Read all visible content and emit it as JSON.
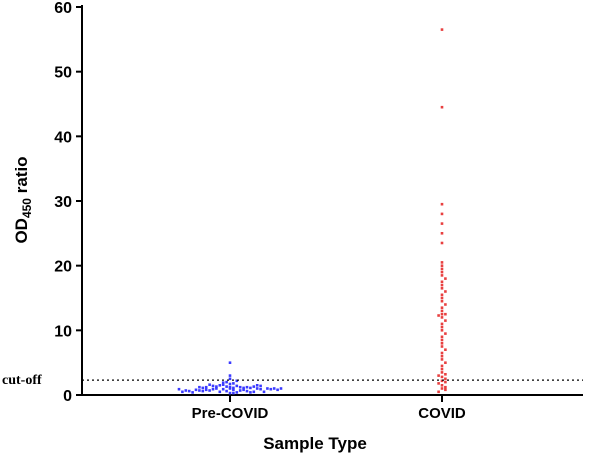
{
  "chart_data": {
    "type": "scatter",
    "subtype": "beeswarm",
    "xlabel": "Sample Type",
    "ylabel": {
      "main": "OD",
      "subscript": "450",
      "suffix": " ratio"
    },
    "categories": [
      "Pre-COVID",
      "COVID"
    ],
    "ylim": [
      0,
      60
    ],
    "yticks": [
      0,
      10,
      20,
      30,
      40,
      50,
      60
    ],
    "grid": false,
    "legend": "none",
    "cutoff": {
      "label": "cut-off",
      "value": 2.3,
      "line_style": "dotted"
    },
    "series": [
      {
        "category": "Pre-COVID",
        "color": "#3a3aff",
        "marker": "square",
        "values": [
          1.2,
          1.0,
          0.8,
          0.6,
          0.4,
          0.9,
          1.1,
          1.3,
          0.7,
          0.5,
          1.4,
          1.6,
          0.3,
          0.8,
          1.0,
          1.2,
          0.6,
          0.9,
          1.5,
          1.7,
          0.4,
          0.7,
          1.1,
          1.3,
          0.5,
          0.8,
          1.0,
          1.8,
          2.0,
          0.6,
          0.9,
          1.2,
          1.4,
          0.3,
          0.7,
          1.1,
          1.6,
          0.5,
          0.8,
          1.0,
          1.3,
          2.2,
          2.5,
          0.4,
          0.9,
          1.2,
          1.5,
          0.6,
          1.0,
          1.9,
          3.0,
          5.0,
          1.1,
          0.7,
          0.8,
          1.4,
          0.5,
          1.0,
          1.2,
          0.9
        ]
      },
      {
        "category": "COVID",
        "color": "#e84040",
        "marker": "square",
        "values": [
          56.5,
          44.5,
          29.5,
          28.0,
          26.5,
          25.0,
          23.5,
          20.5,
          20.0,
          19.5,
          19.0,
          18.5,
          18.0,
          17.5,
          17.0,
          16.5,
          16.0,
          15.5,
          15.0,
          14.5,
          14.0,
          13.5,
          13.0,
          12.5,
          12.5,
          12.3,
          12.0,
          11.5,
          11.0,
          10.5,
          10.0,
          9.5,
          9.0,
          8.5,
          8.0,
          7.5,
          7.0,
          6.5,
          6.0,
          5.5,
          5.0,
          4.5,
          4.0,
          3.5,
          3.2,
          3.0,
          2.8,
          2.5,
          2.2,
          2.0,
          1.8,
          1.5,
          1.2,
          1.0,
          0.8,
          0.5
        ]
      }
    ]
  }
}
